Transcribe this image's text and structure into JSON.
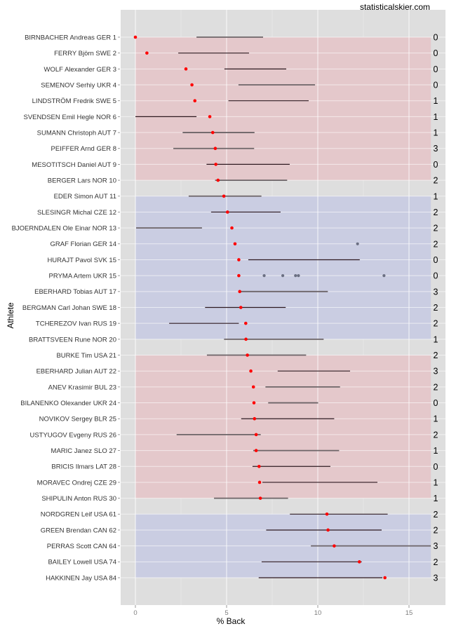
{
  "chart_data": {
    "type": "scatter",
    "title": "",
    "credit": "statisticalskier.com",
    "xlabel": "% Back",
    "ylabel": "Athlete",
    "xlim": [
      -0.8,
      17.2
    ],
    "xticks": [
      0,
      5,
      10,
      15
    ],
    "xtick_labels": [
      "0",
      "5",
      "10",
      "15"
    ],
    "grid": true,
    "legend": "none",
    "colors": {
      "panel": "#dedede",
      "grid_major": "#ffffff",
      "grid_minor": "#ebebeb",
      "band_red": "#e4c6c9",
      "band_blue": "#c8cbe2",
      "point": "#ff0000",
      "extra_point": "#6b6f82",
      "segment_dark": "#2e1a20",
      "segment_grey": "#6d6568"
    },
    "bands": [
      {
        "from_row": 1,
        "to_row": 10,
        "color": "red",
        "x_range": [
          0,
          16.2
        ]
      },
      {
        "from_row": 11,
        "to_row": 20,
        "color": "blue",
        "x_range": [
          0,
          16.2
        ]
      },
      {
        "from_row": 21,
        "to_row": 30,
        "color": "red",
        "x_range": [
          0,
          16.2
        ]
      },
      {
        "from_row": 31,
        "to_row": 35,
        "color": "blue",
        "x_range": [
          0,
          16.2
        ]
      }
    ],
    "athletes": [
      {
        "name": "BIRNBACHER Andreas GER 1",
        "back": 0.0,
        "range": [
          3.35,
          7.0
        ],
        "tone": "grey",
        "right": "0"
      },
      {
        "name": "FERRY Björn SWE 2",
        "back": 0.63,
        "range": [
          2.35,
          6.23
        ],
        "tone": "dark",
        "right": "0"
      },
      {
        "name": "WOLF Alexander GER 3",
        "back": 2.77,
        "range": [
          4.88,
          8.27
        ],
        "tone": "dark",
        "right": "0"
      },
      {
        "name": "SEMENOV Serhiy UKR 4",
        "back": 3.1,
        "range": [
          5.65,
          9.85
        ],
        "tone": "grey",
        "right": "0"
      },
      {
        "name": "LINDSTRÖM Fredrik SWE 5",
        "back": 3.26,
        "range": [
          5.1,
          9.5
        ],
        "tone": "dark",
        "right": "1"
      },
      {
        "name": "SVENDSEN Emil Hegle NOR 6",
        "back": 4.08,
        "range": [
          0.0,
          3.35
        ],
        "tone": "dark",
        "right": "1"
      },
      {
        "name": "SUMANN Christoph AUT 7",
        "back": 4.24,
        "range": [
          2.59,
          6.53
        ],
        "tone": "grey",
        "right": "1"
      },
      {
        "name": "PEIFFER Arnd GER 8",
        "back": 4.38,
        "range": [
          2.08,
          6.51
        ],
        "tone": "grey",
        "right": "3"
      },
      {
        "name": "MESOTITSCH Daniel AUT 9",
        "back": 4.41,
        "range": [
          3.9,
          8.46
        ],
        "tone": "dark",
        "right": "0"
      },
      {
        "name": "BERGER Lars NOR 10",
        "back": 4.53,
        "range": [
          4.37,
          8.32
        ],
        "tone": "grey",
        "right": "2"
      },
      {
        "name": "EDER Simon AUT 11",
        "back": 4.85,
        "range": [
          2.92,
          6.91
        ],
        "tone": "grey",
        "right": "1"
      },
      {
        "name": "SLESINGR Michal CZE 12",
        "back": 5.05,
        "range": [
          4.15,
          7.96
        ],
        "tone": "dark",
        "right": "2"
      },
      {
        "name": "BJOERNDALEN Ole Einar NOR 13",
        "back": 5.29,
        "range": [
          0.04,
          3.65
        ],
        "tone": "grey",
        "right": "2"
      },
      {
        "name": "GRAF Florian GER 14",
        "back": 5.46,
        "range": null,
        "extra": [
          12.18
        ],
        "tone": "grey",
        "right": "2"
      },
      {
        "name": "HURAJT Pavol SVK 15",
        "back": 5.67,
        "range": [
          6.19,
          12.3
        ],
        "tone": "dark",
        "right": "0"
      },
      {
        "name": "PRYMA Artem UKR 15",
        "back": 5.67,
        "range": null,
        "extra": [
          7.06,
          8.08,
          8.78,
          8.94,
          13.63
        ],
        "tone": "grey",
        "right": "0"
      },
      {
        "name": "EBERHARD Tobias AUT 17",
        "back": 5.72,
        "range": [
          5.72,
          10.55
        ],
        "tone": "grey",
        "right": "3"
      },
      {
        "name": "BERGMAN Carl Johan SWE 18",
        "back": 5.78,
        "range": [
          3.82,
          8.24
        ],
        "tone": "dark",
        "right": "2"
      },
      {
        "name": "TCHEREZOV Ivan RUS 19",
        "back": 6.05,
        "range": [
          1.85,
          5.67
        ],
        "tone": "dark",
        "right": "2"
      },
      {
        "name": "BRATTSVEEN Rune NOR 20",
        "back": 6.06,
        "range": [
          4.86,
          10.32
        ],
        "tone": "grey",
        "right": "1"
      },
      {
        "name": "BURKE Tim USA 21",
        "back": 6.14,
        "range": [
          3.92,
          9.36
        ],
        "tone": "grey",
        "right": "2"
      },
      {
        "name": "EBERHARD Julian AUT 22",
        "back": 6.33,
        "range": [
          7.8,
          11.77
        ],
        "tone": "dark",
        "right": "3"
      },
      {
        "name": "ANEV Krasimir BUL 23",
        "back": 6.47,
        "range": [
          7.13,
          11.22
        ],
        "tone": "grey",
        "right": "2"
      },
      {
        "name": "BILANENKO Olexander UKR 24",
        "back": 6.5,
        "range": [
          7.28,
          10.02
        ],
        "tone": "grey",
        "right": "0"
      },
      {
        "name": "NOVIKOV Sergey BLR 25",
        "back": 6.53,
        "range": [
          5.8,
          10.9
        ],
        "tone": "dark",
        "right": "1"
      },
      {
        "name": "USTYUGOV Evgeny RUS 26",
        "back": 6.62,
        "range": [
          2.26,
          6.87
        ],
        "tone": "grey",
        "right": "2"
      },
      {
        "name": "MARIC Janez SLO 27",
        "back": 6.62,
        "range": [
          6.46,
          11.17
        ],
        "tone": "grey",
        "right": "1"
      },
      {
        "name": "BRICIS Ilmars LAT 28",
        "back": 6.78,
        "range": [
          6.42,
          10.69
        ],
        "tone": "dark",
        "right": "0"
      },
      {
        "name": "MORAVEC Ondrej CZE 29",
        "back": 6.81,
        "range": [
          6.96,
          13.27
        ],
        "tone": "dark",
        "right": "1"
      },
      {
        "name": "SHIPULIN Anton RUS 30",
        "back": 6.85,
        "range": [
          4.31,
          8.37
        ],
        "tone": "grey",
        "right": "1"
      },
      {
        "name": "NORDGREN Leif USA 61",
        "back": 10.5,
        "range": [
          8.47,
          13.83
        ],
        "tone": "dark",
        "right": "2"
      },
      {
        "name": "GREEN Brendan CAN 62",
        "back": 10.56,
        "range": [
          7.17,
          13.5
        ],
        "tone": "dark",
        "right": "2"
      },
      {
        "name": "PERRAS Scott CAN 64",
        "back": 10.9,
        "range": [
          9.62,
          16.2
        ],
        "tone": "grey",
        "right": "3"
      },
      {
        "name": "BAILEY Lowell USA 74",
        "back": 12.28,
        "range": [
          6.92,
          12.41
        ],
        "tone": "dark",
        "right": "2"
      },
      {
        "name": "HAKKINEN Jay USA 84",
        "back": 13.68,
        "range": [
          6.76,
          13.54
        ],
        "tone": "dark",
        "right": "3"
      }
    ]
  }
}
